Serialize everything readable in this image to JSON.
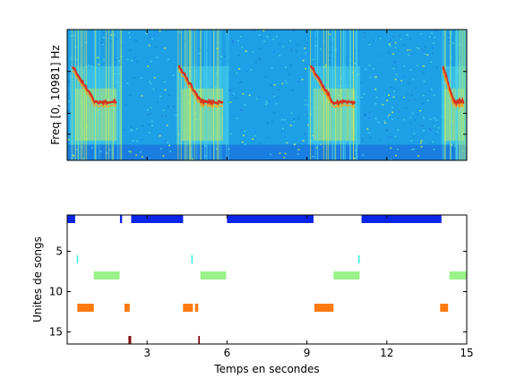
{
  "chart_data": [
    {
      "type": "heatmap",
      "title": "",
      "xlabel": "",
      "ylabel": "Freq [0, 10981] Hz",
      "xlim": [
        0,
        15
      ],
      "colormap": "jet",
      "colors": {
        "background": "#1ea0e6",
        "low": "#1a7ee0",
        "mid": "#4ad6ea",
        "high": "#d8f050",
        "peak": "#e02010"
      },
      "song_segments": [
        {
          "start": 0.1,
          "end": 2.05
        },
        {
          "start": 4.1,
          "end": 6.05
        },
        {
          "start": 9.05,
          "end": 11.0
        },
        {
          "start": 14.05,
          "end": 15.0
        }
      ]
    },
    {
      "type": "bar",
      "title": "",
      "xlabel": "Temps en secondes",
      "ylabel": "Unites de songs",
      "xlim": [
        0,
        15
      ],
      "ylim": [
        16.5,
        0.5
      ],
      "xticks": [
        3,
        6,
        9,
        12,
        15
      ],
      "yticks": [
        5,
        10,
        15
      ],
      "series": [
        {
          "unit": 1,
          "color": "#0a24e8",
          "segments": [
            [
              0.0,
              0.3
            ],
            [
              1.98,
              2.06
            ],
            [
              2.4,
              4.35
            ],
            [
              6.0,
              9.25
            ],
            [
              11.05,
              14.05
            ]
          ]
        },
        {
          "unit": 6,
          "color": "#33f0dc",
          "segments": [
            [
              0.36,
              0.41
            ],
            [
              4.66,
              4.71
            ],
            [
              10.93,
              10.98
            ]
          ]
        },
        {
          "unit": 8,
          "color": "#9af28a",
          "segments": [
            [
              1.0,
              1.97
            ],
            [
              5.0,
              5.97
            ],
            [
              10.0,
              10.98
            ],
            [
              14.35,
              15.0
            ]
          ]
        },
        {
          "unit": 12,
          "color": "#ff7a10",
          "segments": [
            [
              0.38,
              1.0
            ],
            [
              2.15,
              2.35
            ],
            [
              4.35,
              4.72
            ],
            [
              4.8,
              4.92
            ],
            [
              9.28,
              10.0
            ],
            [
              14.0,
              14.3
            ]
          ]
        },
        {
          "unit": 16,
          "color": "#800c0c",
          "segments": [
            [
              2.3,
              2.4
            ],
            [
              4.92,
              4.98
            ]
          ]
        }
      ]
    }
  ]
}
